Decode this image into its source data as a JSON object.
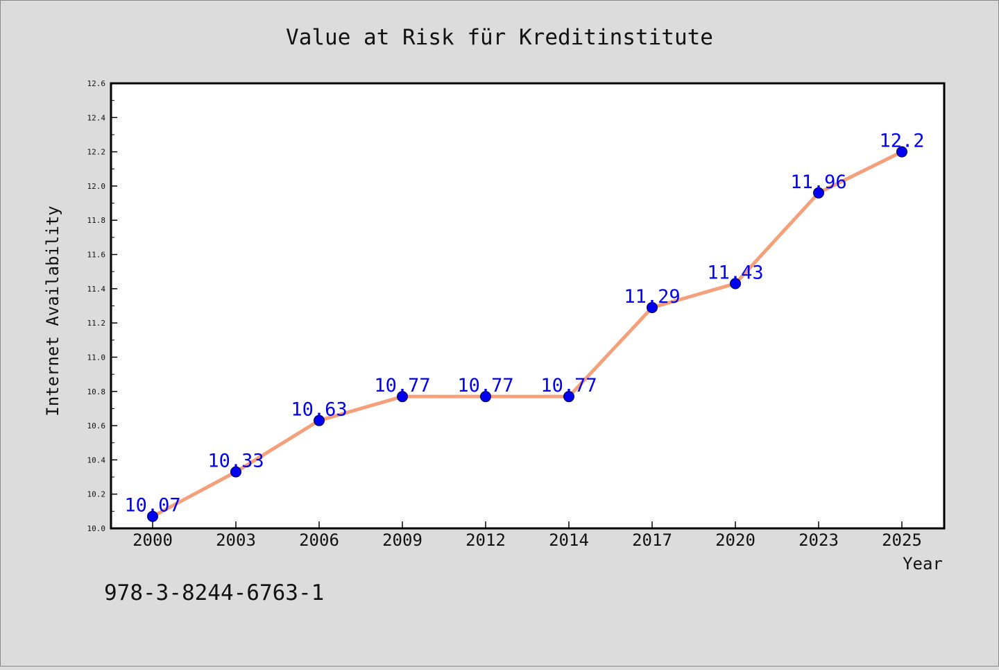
{
  "chart_data": {
    "type": "line",
    "title": "Value at Risk für Kreditinstitute",
    "xlabel": "Year",
    "ylabel": "Internet Availability",
    "categories": [
      "2000",
      "2003",
      "2006",
      "2009",
      "2012",
      "2014",
      "2017",
      "2020",
      "2023",
      "2025"
    ],
    "data_labels": [
      "10.07",
      "10.33",
      "10.63",
      "10.77",
      "10.77",
      "10.77",
      "11.29",
      "11.43",
      "11.96",
      "12.2"
    ],
    "series": [
      {
        "values": [
          10.07,
          10.33,
          10.63,
          10.77,
          10.77,
          10.77,
          11.29,
          11.43,
          11.96,
          12.2
        ]
      }
    ],
    "ylim": [
      10.0,
      12.6
    ],
    "yticks": [
      "10.0",
      "10.2",
      "10.4",
      "10.6",
      "10.8",
      "11.0",
      "11.2",
      "11.4",
      "11.6",
      "11.8",
      "12.0",
      "12.2",
      "12.4",
      "12.6"
    ],
    "grid": false,
    "legend": "none",
    "colors": {
      "line": "#f4a07a",
      "marker": "#0000ee",
      "label": "#0000ee",
      "background": "#dcdcdc",
      "plot_background": "#ffffff"
    }
  },
  "annotation": "978-3-8244-6763-1"
}
